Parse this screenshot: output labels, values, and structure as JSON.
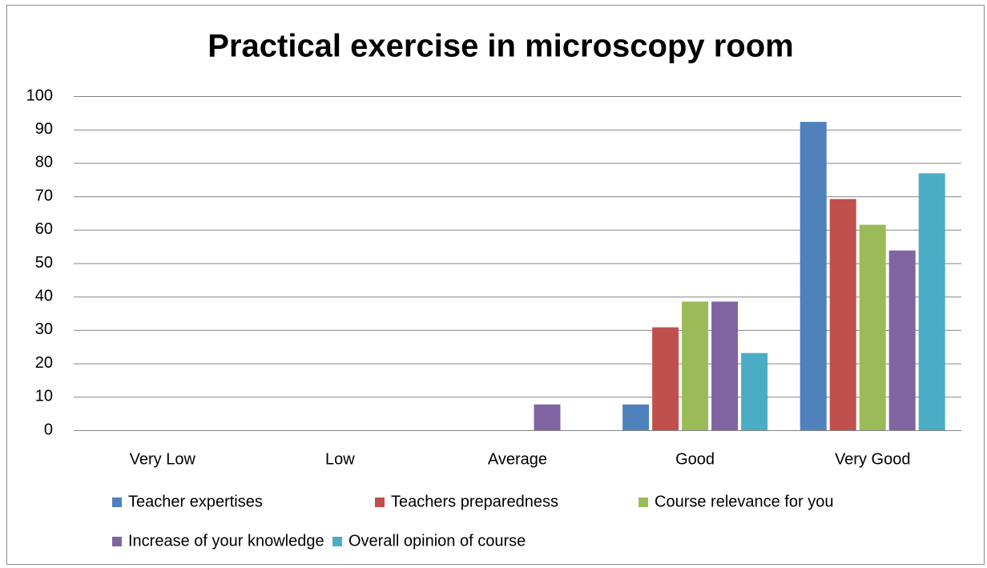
{
  "chart_data": {
    "type": "bar",
    "title": "Practical exercise in microscopy room",
    "categories": [
      "Very Low",
      "Low",
      "Average",
      "Good",
      "Very Good"
    ],
    "series": [
      {
        "name": "Teacher expertises",
        "color": "#4f81bd",
        "values": [
          0,
          0,
          0,
          7.7,
          92.3
        ]
      },
      {
        "name": "Teachers preparedness",
        "color": "#c0504d",
        "values": [
          0,
          0,
          0,
          30.8,
          69.2
        ]
      },
      {
        "name": "Course relevance for you",
        "color": "#9bbb59",
        "values": [
          0,
          0,
          0,
          38.5,
          61.5
        ]
      },
      {
        "name": "Increase of your knowledge",
        "color": "#8064a2",
        "values": [
          0,
          0,
          7.7,
          38.5,
          53.8
        ]
      },
      {
        "name": "Overall opinion of course",
        "color": "#4bacc6",
        "values": [
          0,
          0,
          0,
          23.1,
          76.9
        ]
      }
    ],
    "ylim": [
      0,
      100
    ],
    "yticks": [
      0,
      10,
      20,
      30,
      40,
      50,
      60,
      70,
      80,
      90,
      100
    ],
    "grid": true,
    "legend": "bottom"
  }
}
